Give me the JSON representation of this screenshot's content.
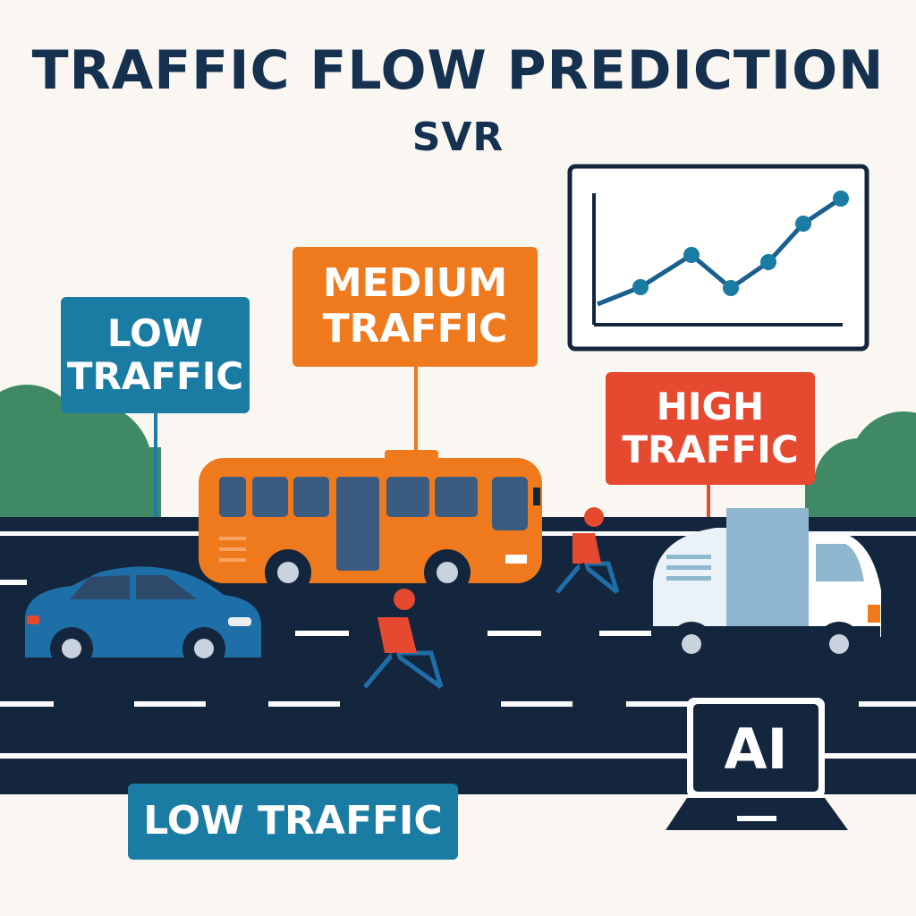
{
  "header": {
    "title": "TRAFFIC FLOW PREDICTION",
    "subtitle": "SVR"
  },
  "signs": {
    "low": "LOW\nTRAFFIC",
    "medium": "MEDIUM\nTRAFFIC",
    "high": "HIGH\nTRAFFIC",
    "bottom": "LOW TRAFFIC"
  },
  "laptop": {
    "screen_text": "AI"
  },
  "icons": {
    "chart": "line-chart-icon",
    "laptop": "laptop-icon"
  },
  "colors": {
    "title": "#16304f",
    "low": "#1a7ca3",
    "medium": "#ef7a1e",
    "high": "#e5492f",
    "road": "#14263d",
    "tree": "#3f8a64"
  }
}
